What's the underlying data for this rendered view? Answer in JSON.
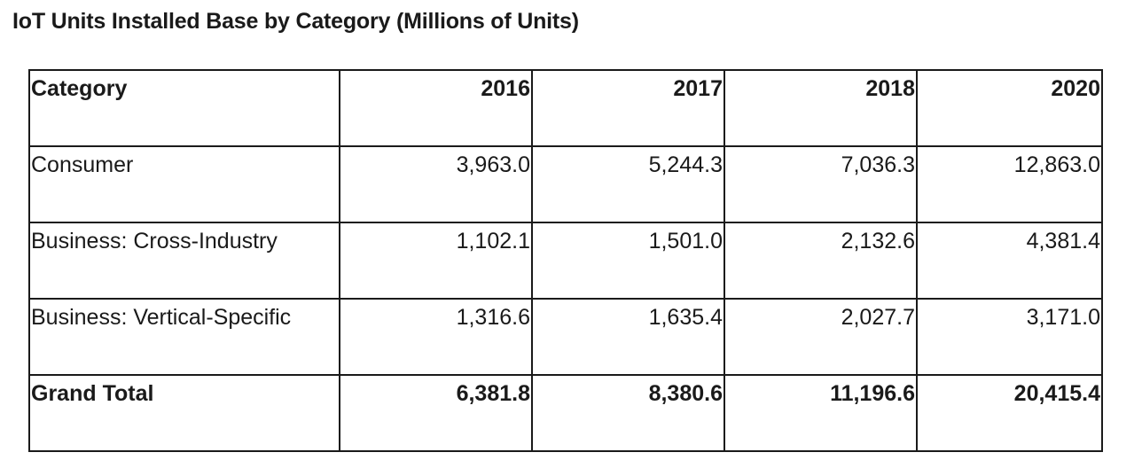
{
  "chart_data": {
    "type": "table",
    "title": "IoT Units Installed Base by Category (Millions of Units)",
    "columns": [
      "Category",
      "2016",
      "2017",
      "2018",
      "2020"
    ],
    "rows": [
      [
        "Consumer",
        "3,963.0",
        "5,244.3",
        "7,036.3",
        "12,863.0"
      ],
      [
        "Business: Cross-Industry",
        "1,102.1",
        "1,501.0",
        "2,132.6",
        "4,381.4"
      ],
      [
        "Business: Vertical-Specific",
        "1,316.6",
        "1,635.4",
        "2,027.7",
        "3,171.0"
      ],
      [
        "Grand Total",
        "6,381.8",
        "8,380.6",
        "11,196.6",
        "20,415.4"
      ]
    ]
  }
}
